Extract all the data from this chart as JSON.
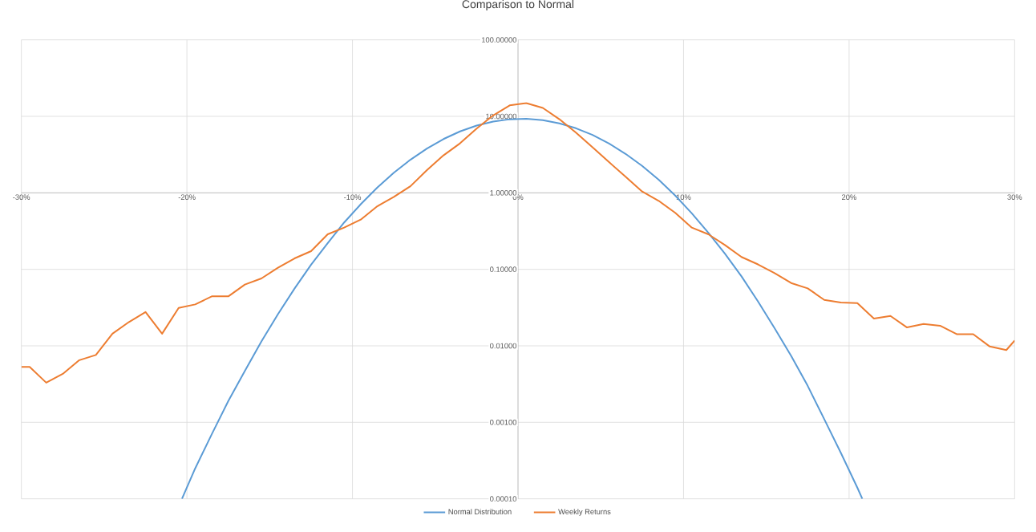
{
  "chart_data": {
    "type": "line",
    "title": "Comparison to Normal",
    "series": [
      {
        "name": "Normal Distribution",
        "color": "#5b9bd5",
        "x": [
          -20.3,
          -19.5,
          -18.5,
          -17.5,
          -16.5,
          -15.5,
          -14.5,
          -13.5,
          -12.5,
          -11.5,
          -10.5,
          -9.5,
          -8.5,
          -7.5,
          -6.5,
          -5.5,
          -4.5,
          -3.5,
          -2.5,
          -1.5,
          -0.5,
          0.5,
          1.5,
          2.5,
          3.5,
          4.5,
          5.5,
          6.5,
          7.5,
          8.5,
          9.5,
          10.5,
          11.5,
          12.5,
          13.5,
          14.5,
          15.5,
          16.5,
          17.5,
          18.5,
          19.5,
          20.5,
          20.8
        ],
        "values": [
          0.0001,
          0.00025,
          0.0007,
          0.0019,
          0.0047,
          0.0114,
          0.026,
          0.056,
          0.115,
          0.22,
          0.41,
          0.71,
          1.17,
          1.83,
          2.71,
          3.8,
          5.05,
          6.36,
          7.58,
          8.56,
          9.16,
          9.28,
          8.92,
          8.11,
          6.99,
          5.71,
          4.41,
          3.23,
          2.25,
          1.48,
          0.92,
          0.54,
          0.3,
          0.16,
          0.081,
          0.038,
          0.017,
          0.0074,
          0.003,
          0.0011,
          0.0004,
          0.00014,
          0.0001
        ]
      },
      {
        "name": "Weekly Returns",
        "color": "#ed7d31",
        "x": [
          -30,
          -29.5,
          -28.5,
          -27.5,
          -26.5,
          -25.5,
          -24.5,
          -23.5,
          -22.5,
          -21.5,
          -20.5,
          -19.5,
          -18.5,
          -17.5,
          -16.5,
          -15.5,
          -14.5,
          -13.5,
          -12.5,
          -11.5,
          -10.5,
          -9.5,
          -8.5,
          -7.5,
          -6.5,
          -5.5,
          -4.5,
          -3.5,
          -2.5,
          -1.5,
          -0.5,
          0.5,
          1.5,
          2.5,
          3.5,
          4.5,
          5.5,
          6.5,
          7.5,
          8.5,
          9.5,
          10.5,
          11.5,
          12.5,
          13.5,
          14.5,
          15.5,
          16.5,
          17.5,
          18.5,
          19.5,
          20.5,
          21.5,
          22.5,
          23.5,
          24.5,
          25.5,
          26.5,
          27.5,
          28.5,
          29.5,
          30
        ],
        "values": [
          0.0053,
          0.0053,
          0.0033,
          0.0043,
          0.0065,
          0.0076,
          0.0144,
          0.0205,
          0.0277,
          0.0144,
          0.0313,
          0.0348,
          0.0443,
          0.0443,
          0.0632,
          0.076,
          0.105,
          0.139,
          0.173,
          0.287,
          0.351,
          0.447,
          0.668,
          0.887,
          1.22,
          1.98,
          3.09,
          4.44,
          6.91,
          10.3,
          13.9,
          14.9,
          12.9,
          9.17,
          6.12,
          3.94,
          2.52,
          1.62,
          1.04,
          0.786,
          0.547,
          0.351,
          0.287,
          0.208,
          0.145,
          0.116,
          0.0893,
          0.0663,
          0.0564,
          0.0399,
          0.0368,
          0.0362,
          0.0227,
          0.0246,
          0.0174,
          0.0193,
          0.0183,
          0.0142,
          0.0142,
          0.0098,
          0.0088,
          0.0117
        ]
      }
    ],
    "xlim": [
      -30,
      30
    ],
    "xticks": [
      {
        "value": -30,
        "label": "-30%"
      },
      {
        "value": -20,
        "label": "-20%"
      },
      {
        "value": -10,
        "label": "-10%"
      },
      {
        "value": 0,
        "label": "0%"
      },
      {
        "value": 10,
        "label": "10%"
      },
      {
        "value": 20,
        "label": "20%"
      },
      {
        "value": 30,
        "label": "30%"
      }
    ],
    "ylim": [
      0.0001,
      100
    ],
    "yticks": [
      {
        "value": 0.0001,
        "label": "0.00010"
      },
      {
        "value": 0.001,
        "label": "0.00100"
      },
      {
        "value": 0.01,
        "label": "0.01000"
      },
      {
        "value": 0.1,
        "label": "0.10000"
      },
      {
        "value": 1,
        "label": "1.00000"
      },
      {
        "value": 10,
        "label": "10.00000"
      },
      {
        "value": 100,
        "label": "100.00000"
      }
    ],
    "log": "y",
    "grid": true,
    "legend": "bottom",
    "marker": "none",
    "line_style": "solid"
  }
}
